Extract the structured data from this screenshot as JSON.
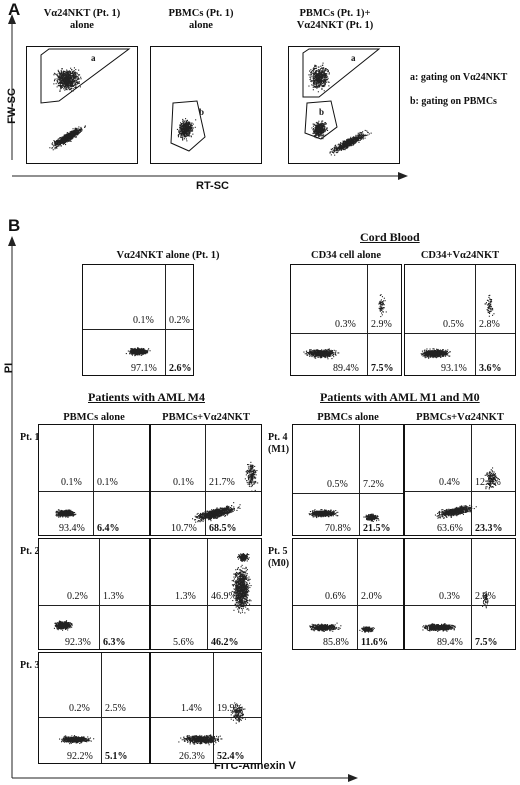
{
  "panelA": {
    "letter": "A",
    "titles": [
      "Vα24NKT (Pt. 1)\nalone",
      "PBMCs (Pt. 1)\nalone",
      "PBMCs (Pt. 1)+\nVα24NKT (Pt. 1)"
    ],
    "ylabel": "FW-SC",
    "xlabel": "RT-SC",
    "gate_a": "a",
    "gate_b": "b",
    "legend_a": "a: gating on Vα24NKT",
    "legend_b": "b: gating on PBMCs"
  },
  "panelB": {
    "letter": "B",
    "ylabel": "PI",
    "xlabel": "FITC-Annexin V",
    "cord_blood_title": "Cord Blood",
    "aml_m4_title": "Patients with AML M4",
    "aml_m1_m0_title": "Patients with AML M1 and M0",
    "col_pbmcs_alone": "PBMCs alone",
    "col_pbmcs_nkt": "PBMCs+Vα24NKT",
    "nkt_alone_title": "Vα24NKT alone (Pt. 1)",
    "cd34_alone_title": "CD34 cell alone",
    "cd34_nkt_title": "CD34+Vα24NKT",
    "pt1": "Pt. 1",
    "pt2": "Pt. 2",
    "pt3": "Pt. 3",
    "pt4": "Pt. 4",
    "pt4_sub": "(M1)",
    "pt5": "Pt. 5",
    "pt5_sub": "(M0)"
  },
  "chart_data": [
    {
      "type": "scatter",
      "id": "nkt_alone",
      "quadrants": {
        "UL": "0.1%",
        "UR": "0.2%",
        "LL": "97.1%",
        "LR": "2.6%"
      }
    },
    {
      "type": "scatter",
      "id": "cd34_alone",
      "quadrants": {
        "UL": "0.3%",
        "UR": "2.9%",
        "LL": "89.4%",
        "LR": "7.5%"
      }
    },
    {
      "type": "scatter",
      "id": "cd34_nkt",
      "quadrants": {
        "UL": "0.5%",
        "UR": "2.8%",
        "LL": "93.1%",
        "LR": "3.6%"
      }
    },
    {
      "type": "scatter",
      "id": "pt1_alone",
      "quadrants": {
        "UL": "0.1%",
        "UR": "0.1%",
        "LL": "93.4%",
        "LR": "6.4%"
      }
    },
    {
      "type": "scatter",
      "id": "pt1_nkt",
      "quadrants": {
        "UL": "0.1%",
        "UR": "21.7%",
        "LL": "10.7%",
        "LR": "68.5%"
      }
    },
    {
      "type": "scatter",
      "id": "pt2_alone",
      "quadrants": {
        "UL": "0.2%",
        "UR": "1.3%",
        "LL": "92.3%",
        "LR": "6.3%"
      }
    },
    {
      "type": "scatter",
      "id": "pt2_nkt",
      "quadrants": {
        "UL": "1.3%",
        "UR": "46.9%",
        "LL": "5.6%",
        "LR": "46.2%"
      }
    },
    {
      "type": "scatter",
      "id": "pt3_alone",
      "quadrants": {
        "UL": "0.2%",
        "UR": "2.5%",
        "LL": "92.2%",
        "LR": "5.1%"
      }
    },
    {
      "type": "scatter",
      "id": "pt3_nkt",
      "quadrants": {
        "UL": "1.4%",
        "UR": "19.9%",
        "LL": "26.3%",
        "LR": "52.4%"
      }
    },
    {
      "type": "scatter",
      "id": "pt4_alone",
      "quadrants": {
        "UL": "0.5%",
        "UR": "7.2%",
        "LL": "70.8%",
        "LR": "21.5%"
      }
    },
    {
      "type": "scatter",
      "id": "pt4_nkt",
      "quadrants": {
        "UL": "0.4%",
        "UR": "12.7%",
        "LL": "63.6%",
        "LR": "23.3%"
      }
    },
    {
      "type": "scatter",
      "id": "pt5_alone",
      "quadrants": {
        "UL": "0.6%",
        "UR": "2.0%",
        "LL": "85.8%",
        "LR": "11.6%"
      }
    },
    {
      "type": "scatter",
      "id": "pt5_nkt",
      "quadrants": {
        "UL": "0.3%",
        "UR": "2.9%",
        "LL": "89.4%",
        "LR": "7.5%"
      }
    }
  ]
}
